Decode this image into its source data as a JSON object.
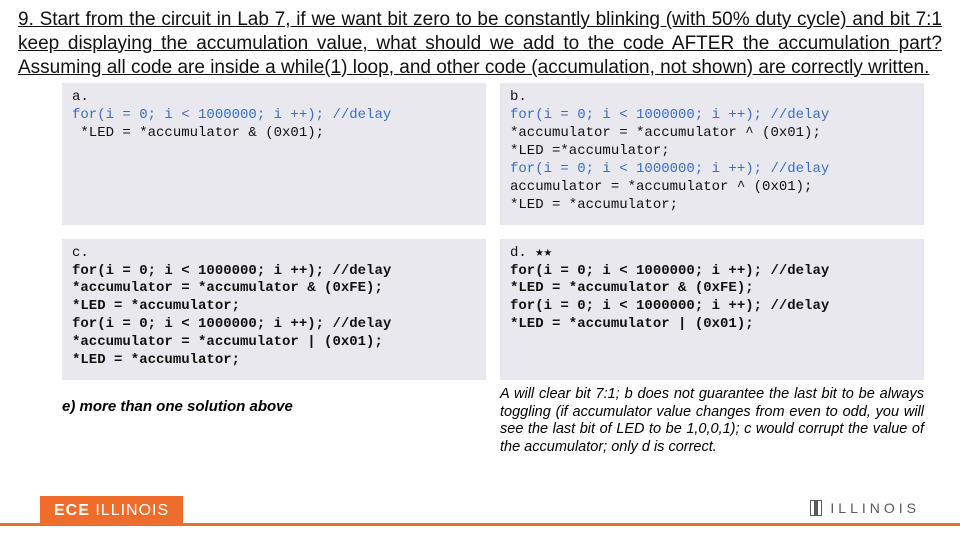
{
  "question": {
    "prefix": "9. Start from the circuit in Lab 7, if we want bit zero to be constantly blinking (with 50% duty cycle) and bit 7:1 keep displaying the accumulation value, what should we add to the code ",
    "emph": "AFTER",
    "suffix": " the accumulation part? Assuming all code are inside a while(1) loop, and other code (accumulation, not shown) are correctly written."
  },
  "options": {
    "a": {
      "label": "a.",
      "lines": [
        "for(i = 0; i < 1000000; i ++); //delay",
        " *LED = *accumulator & (0x01);"
      ]
    },
    "b": {
      "label": "b.",
      "lines": [
        "for(i = 0; i < 1000000; i ++); //delay",
        "*accumulator = *accumulator ^ (0x01);",
        "*LED =*accumulator;",
        "for(i = 0; i < 1000000; i ++); //delay",
        "accumulator = *accumulator ^ (0x01);",
        "*LED = *accumulator;"
      ]
    },
    "c": {
      "label": "c.",
      "lines_bold": [
        "for(i = 0; i < 1000000; i ++); //delay",
        "*accumulator = *accumulator & (0xFE);",
        "*LED = *accumulator;",
        "for(i = 0; i < 1000000; i ++); //delay",
        "*accumulator = *accumulator | (0x01);",
        "*LED = *accumulator;"
      ]
    },
    "d": {
      "label": "d. ★★",
      "lines_bold": [
        "for(i = 0; i < 1000000; i ++); //delay",
        "*LED = *accumulator & (0xFE);",
        "for(i = 0; i < 1000000; i ++); //delay",
        "*LED = *accumulator | (0x01);"
      ]
    },
    "e": {
      "label": "e) more than one solution above"
    }
  },
  "explanation": "A will clear bit 7:1; b does not guarantee the last bit to be always toggling (if accumulator value changes from even to odd, you will see the last bit of LED to be 1,0,0,1); c would corrupt the value of the accumulator; only d is correct.",
  "footer": {
    "ece": "ECE ",
    "ece2": "ILLINOIS",
    "uni": "ILLINOIS"
  }
}
